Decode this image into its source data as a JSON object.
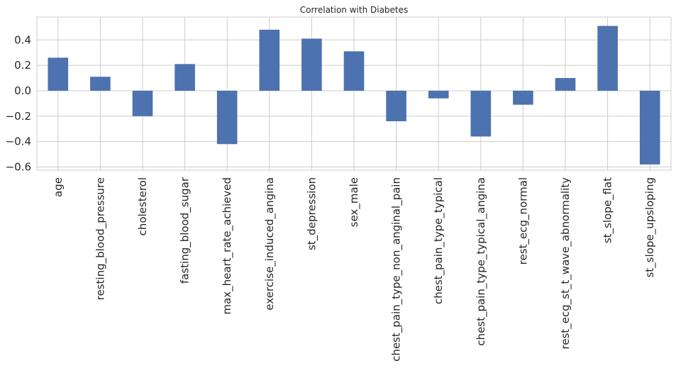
{
  "chart_data": {
    "type": "bar",
    "title": "Correlation with Diabetes",
    "xlabel": "",
    "ylabel": "",
    "ylim": [
      -0.625,
      0.58
    ],
    "yticks": [
      -0.6,
      -0.4,
      -0.2,
      0.0,
      0.2,
      0.4
    ],
    "ytick_labels": [
      "−0.6",
      "−0.4",
      "−0.2",
      "0.0",
      "0.2",
      "0.4"
    ],
    "grid": true,
    "bar_color": "#4c72b0",
    "categories": [
      "age",
      "resting_blood_pressure",
      "cholesterol",
      "fasting_blood_sugar",
      "max_heart_rate_achieved",
      "exercise_induced_angina",
      "st_depression",
      "sex_male",
      "chest_pain_type_non_anginal_pain",
      "chest_pain_type_typical",
      "chest_pain_type_typical_angina",
      "rest_ecg_normal",
      "rest_ecg_st_t_wave_abnormality",
      "st_slope_flat",
      "st_slope_upsloping"
    ],
    "values": [
      0.26,
      0.11,
      -0.2,
      0.21,
      -0.42,
      0.48,
      0.41,
      0.31,
      -0.24,
      -0.06,
      -0.36,
      -0.11,
      0.1,
      0.51,
      -0.58
    ]
  }
}
